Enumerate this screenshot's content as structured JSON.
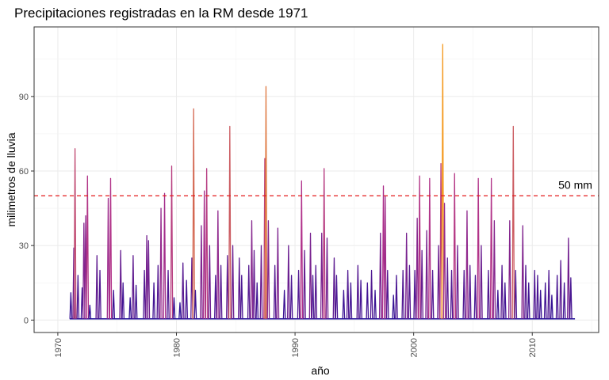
{
  "chart_data": {
    "type": "line",
    "title": "Precipitaciones registradas en la RM desde 1971",
    "xlabel": "año",
    "ylabel": "milimetros de lluvia",
    "xlim": [
      1971,
      2013.6
    ],
    "ylim": [
      0,
      112
    ],
    "x_ticks": [
      1970,
      1980,
      1990,
      2000,
      2010
    ],
    "y_ticks": [
      0,
      30,
      60,
      90
    ],
    "grid": true,
    "legend": "none",
    "reference_line": {
      "y": 50,
      "label": "50 mm",
      "color": "#e41a1c",
      "style": "dashed"
    },
    "color_scale": {
      "low": "#1a0a96",
      "mid": "#b0308a",
      "high": "#f59c1e"
    },
    "series": [
      {
        "values": [
          [
            1971.1,
            11
          ],
          [
            1971.35,
            29
          ],
          [
            1971.45,
            69
          ],
          [
            1971.7,
            18
          ],
          [
            1972.05,
            13
          ],
          [
            1972.2,
            39
          ],
          [
            1972.35,
            42
          ],
          [
            1972.5,
            58
          ],
          [
            1972.7,
            6
          ],
          [
            1973.3,
            26
          ],
          [
            1973.55,
            20
          ],
          [
            1974.25,
            49
          ],
          [
            1974.45,
            57
          ],
          [
            1974.7,
            12
          ],
          [
            1975.3,
            28
          ],
          [
            1975.5,
            15
          ],
          [
            1976.1,
            9
          ],
          [
            1976.35,
            26
          ],
          [
            1976.6,
            14
          ],
          [
            1977.3,
            20
          ],
          [
            1977.5,
            34
          ],
          [
            1977.65,
            32
          ],
          [
            1978.1,
            15
          ],
          [
            1978.45,
            22
          ],
          [
            1978.7,
            45
          ],
          [
            1979.0,
            51
          ],
          [
            1979.3,
            20
          ],
          [
            1979.6,
            62
          ],
          [
            1979.8,
            9
          ],
          [
            1980.3,
            7
          ],
          [
            1980.55,
            23
          ],
          [
            1980.85,
            16
          ],
          [
            1981.3,
            25
          ],
          [
            1981.45,
            85
          ],
          [
            1981.6,
            12
          ],
          [
            1982.1,
            38
          ],
          [
            1982.35,
            52
          ],
          [
            1982.55,
            61
          ],
          [
            1982.8,
            30
          ],
          [
            1983.3,
            18
          ],
          [
            1983.5,
            44
          ],
          [
            1983.75,
            22
          ],
          [
            1984.3,
            26
          ],
          [
            1984.5,
            78
          ],
          [
            1984.75,
            30
          ],
          [
            1985.3,
            25
          ],
          [
            1985.5,
            18
          ],
          [
            1986.1,
            22
          ],
          [
            1986.35,
            40
          ],
          [
            1986.55,
            28
          ],
          [
            1986.8,
            15
          ],
          [
            1987.15,
            30
          ],
          [
            1987.45,
            65
          ],
          [
            1987.55,
            94
          ],
          [
            1987.75,
            40
          ],
          [
            1988.3,
            22
          ],
          [
            1988.55,
            37
          ],
          [
            1989.1,
            12
          ],
          [
            1989.45,
            30
          ],
          [
            1989.7,
            18
          ],
          [
            1990.3,
            20
          ],
          [
            1990.55,
            56
          ],
          [
            1990.8,
            28
          ],
          [
            1991.3,
            35
          ],
          [
            1991.5,
            18
          ],
          [
            1991.75,
            22
          ],
          [
            1992.25,
            35
          ],
          [
            1992.45,
            61
          ],
          [
            1992.7,
            33
          ],
          [
            1993.3,
            25
          ],
          [
            1993.5,
            18
          ],
          [
            1994.1,
            12
          ],
          [
            1994.45,
            20
          ],
          [
            1994.7,
            15
          ],
          [
            1995.3,
            22
          ],
          [
            1995.55,
            16
          ],
          [
            1996.1,
            15
          ],
          [
            1996.45,
            20
          ],
          [
            1996.75,
            12
          ],
          [
            1997.2,
            35
          ],
          [
            1997.45,
            54
          ],
          [
            1997.6,
            50
          ],
          [
            1997.8,
            20
          ],
          [
            1998.3,
            10
          ],
          [
            1998.55,
            18
          ],
          [
            1999.1,
            20
          ],
          [
            1999.4,
            35
          ],
          [
            1999.65,
            22
          ],
          [
            2000.1,
            20
          ],
          [
            2000.3,
            41
          ],
          [
            2000.5,
            58
          ],
          [
            2000.7,
            28
          ],
          [
            2001.1,
            36
          ],
          [
            2001.35,
            57
          ],
          [
            2001.6,
            20
          ],
          [
            2002.1,
            30
          ],
          [
            2002.3,
            63
          ],
          [
            2002.45,
            111
          ],
          [
            2002.6,
            47
          ],
          [
            2002.85,
            25
          ],
          [
            2003.2,
            20
          ],
          [
            2003.45,
            59
          ],
          [
            2003.7,
            30
          ],
          [
            2004.25,
            20
          ],
          [
            2004.5,
            44
          ],
          [
            2004.75,
            22
          ],
          [
            2005.2,
            18
          ],
          [
            2005.45,
            57
          ],
          [
            2005.7,
            30
          ],
          [
            2006.3,
            20
          ],
          [
            2006.55,
            57
          ],
          [
            2006.8,
            40
          ],
          [
            2007.1,
            12
          ],
          [
            2007.45,
            22
          ],
          [
            2007.7,
            15
          ],
          [
            2008.1,
            40
          ],
          [
            2008.4,
            78
          ],
          [
            2008.6,
            20
          ],
          [
            2009.2,
            38
          ],
          [
            2009.45,
            22
          ],
          [
            2009.7,
            15
          ],
          [
            2010.2,
            20
          ],
          [
            2010.45,
            18
          ],
          [
            2010.7,
            12
          ],
          [
            2011.1,
            15
          ],
          [
            2011.4,
            20
          ],
          [
            2011.65,
            10
          ],
          [
            2012.1,
            18
          ],
          [
            2012.4,
            24
          ],
          [
            2012.7,
            15
          ],
          [
            2013.05,
            33
          ],
          [
            2013.25,
            17
          ]
        ]
      }
    ]
  }
}
